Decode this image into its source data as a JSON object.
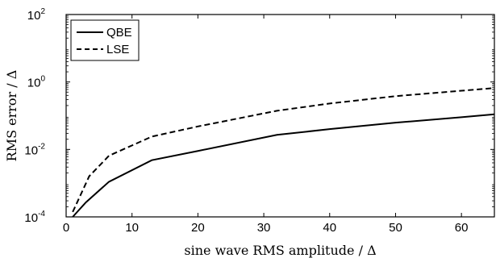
{
  "chart_data": {
    "type": "line",
    "xlabel": "sine wave RMS amplitude / Δ",
    "ylabel": "RMS error / Δ",
    "xlim": [
      0,
      65
    ],
    "ylim": [
      0.0001,
      100
    ],
    "yscale": "log",
    "xticks": [
      "0",
      "10",
      "20",
      "30",
      "40",
      "50",
      "60"
    ],
    "yticks": [
      {
        "base": "10",
        "exp": "-4",
        "value": 0.0001
      },
      {
        "base": "10",
        "exp": "-2",
        "value": 0.01
      },
      {
        "base": "10",
        "exp": "0",
        "value": 1
      },
      {
        "base": "10",
        "exp": "2",
        "value": 100
      }
    ],
    "legend_position": "top-left",
    "series": [
      {
        "name": "QBE",
        "style": "solid",
        "x": [
          1.0,
          3.0,
          6.5,
          13.0,
          20,
          32,
          40,
          50,
          60,
          65
        ],
        "y": [
          0.0001,
          0.00027,
          0.0011,
          0.0048,
          0.009,
          0.027,
          0.04,
          0.062,
          0.09,
          0.11
        ]
      },
      {
        "name": "LSE",
        "style": "dashed",
        "x": [
          1.0,
          3.5,
          6.5,
          13.0,
          20,
          32,
          40,
          50,
          60,
          65
        ],
        "y": [
          0.00014,
          0.0016,
          0.0065,
          0.024,
          0.048,
          0.14,
          0.23,
          0.38,
          0.55,
          0.66
        ]
      }
    ]
  }
}
